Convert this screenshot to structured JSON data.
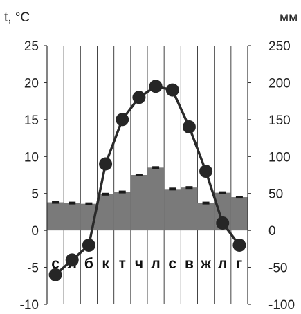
{
  "chart_data": {
    "type": "bar",
    "left_unit": "t, °C",
    "right_unit": "мм",
    "categories": [
      "с",
      "л",
      "б",
      "к",
      "т",
      "ч",
      "л",
      "с",
      "в",
      "ж",
      "л",
      "г"
    ],
    "left_axis": {
      "min": -10,
      "max": 25,
      "step": 5,
      "ticks": [
        "25",
        "20",
        "15",
        "10",
        "5",
        "0",
        "-5",
        "-10"
      ]
    },
    "right_axis": {
      "min": -100,
      "max": 250,
      "step": 50,
      "ticks": [
        "250",
        "200",
        "150",
        "100",
        "50",
        "0",
        "-50",
        "-100"
      ]
    },
    "series": [
      {
        "axis": "right",
        "kind": "bar",
        "values": [
          38,
          37,
          36,
          49,
          52,
          75,
          85,
          56,
          58,
          37,
          51,
          45
        ]
      },
      {
        "axis": "left",
        "kind": "line-markers",
        "values": [
          -6,
          -4,
          -2,
          9,
          15,
          18,
          19.5,
          19,
          14,
          8,
          1,
          -2
        ]
      }
    ],
    "grid": "vertical",
    "colors": {
      "bar": "#7a7a7a",
      "bar_cap": "#1a1a1a",
      "line": "#2a2a2a",
      "marker": "#262626",
      "grid": "#444444"
    }
  }
}
